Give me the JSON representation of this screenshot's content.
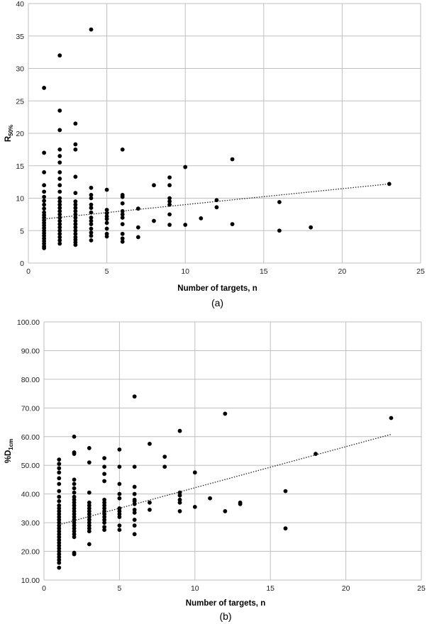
{
  "chart_data": [
    {
      "type": "scatter",
      "panel_label": "(a)",
      "xlabel": "Number of targets, n",
      "ylabel_main": "R",
      "ylabel_sub": "50%",
      "xlim": [
        0,
        25
      ],
      "ylim": [
        0,
        40
      ],
      "xticks": [
        0,
        5,
        10,
        15,
        20,
        25
      ],
      "yticks": [
        0,
        5,
        10,
        15,
        20,
        25,
        30,
        35,
        40
      ],
      "xtick_labels": [
        "0",
        "5",
        "10",
        "15",
        "20",
        "25"
      ],
      "ytick_labels": [
        "0",
        "5",
        "10",
        "15",
        "20",
        "25",
        "30",
        "35",
        "40"
      ],
      "grid": true,
      "trendline": {
        "x": [
          1,
          23
        ],
        "y": [
          6.8,
          12.2
        ]
      },
      "points": [
        [
          1,
          27
        ],
        [
          1,
          17
        ],
        [
          1,
          14
        ],
        [
          1,
          12
        ],
        [
          1,
          11
        ],
        [
          1,
          10.2
        ],
        [
          1,
          9.6
        ],
        [
          1,
          9
        ],
        [
          1,
          8.4
        ],
        [
          1,
          7.8
        ],
        [
          1,
          7.4
        ],
        [
          1,
          7
        ],
        [
          1,
          6.6
        ],
        [
          1,
          6.2
        ],
        [
          1,
          5.8
        ],
        [
          1,
          5.4
        ],
        [
          1,
          5
        ],
        [
          1,
          4.6
        ],
        [
          1,
          4.2
        ],
        [
          1,
          3.8
        ],
        [
          1,
          3.4
        ],
        [
          1,
          3
        ],
        [
          1,
          2.6
        ],
        [
          1,
          2.3
        ],
        [
          2,
          32
        ],
        [
          2,
          23.5
        ],
        [
          2,
          20.5
        ],
        [
          2,
          17.5
        ],
        [
          2,
          16.5
        ],
        [
          2,
          15.5
        ],
        [
          2,
          14
        ],
        [
          2,
          13
        ],
        [
          2,
          12
        ],
        [
          2,
          11
        ],
        [
          2,
          10
        ],
        [
          2,
          9.5
        ],
        [
          2,
          9
        ],
        [
          2,
          8.5
        ],
        [
          2,
          8
        ],
        [
          2,
          7.5
        ],
        [
          2,
          7
        ],
        [
          2,
          6.5
        ],
        [
          2,
          6
        ],
        [
          2,
          5.5
        ],
        [
          2,
          5
        ],
        [
          2,
          4.5
        ],
        [
          2,
          4
        ],
        [
          2,
          3.5
        ],
        [
          2,
          3
        ],
        [
          3,
          21.5
        ],
        [
          3,
          18.3
        ],
        [
          3,
          17.5
        ],
        [
          3,
          13.3
        ],
        [
          3,
          10.8
        ],
        [
          3,
          9.5
        ],
        [
          3,
          9
        ],
        [
          3,
          8.5
        ],
        [
          3,
          8
        ],
        [
          3,
          7.5
        ],
        [
          3,
          7
        ],
        [
          3,
          6.5
        ],
        [
          3,
          6
        ],
        [
          3,
          5.5
        ],
        [
          3,
          5
        ],
        [
          3,
          4.5
        ],
        [
          3,
          4
        ],
        [
          3,
          3.6
        ],
        [
          3,
          3.2
        ],
        [
          3,
          2.8
        ],
        [
          4,
          36
        ],
        [
          4,
          11.6
        ],
        [
          4,
          10.5
        ],
        [
          4,
          10
        ],
        [
          4,
          9
        ],
        [
          4,
          8.5
        ],
        [
          4,
          7.8
        ],
        [
          4,
          7
        ],
        [
          4,
          6.5
        ],
        [
          4,
          6
        ],
        [
          4,
          5.3
        ],
        [
          4,
          4.7
        ],
        [
          4,
          4.2
        ],
        [
          4,
          3.5
        ],
        [
          5,
          11.3
        ],
        [
          5,
          8.2
        ],
        [
          5,
          7.7
        ],
        [
          5,
          7.2
        ],
        [
          5,
          6.8
        ],
        [
          5,
          6.2
        ],
        [
          5,
          5.3
        ],
        [
          5,
          4.5
        ],
        [
          5,
          4.1
        ],
        [
          6,
          17.5
        ],
        [
          6,
          10.5
        ],
        [
          6,
          10.2
        ],
        [
          6,
          9.2
        ],
        [
          6,
          8
        ],
        [
          6,
          7.5
        ],
        [
          6,
          7
        ],
        [
          6,
          6
        ],
        [
          6,
          4.5
        ],
        [
          6,
          3.8
        ],
        [
          6,
          3.3
        ],
        [
          7,
          8.4
        ],
        [
          7,
          5.5
        ],
        [
          7,
          4
        ],
        [
          8,
          12
        ],
        [
          8,
          6.5
        ],
        [
          9,
          13.2
        ],
        [
          9,
          12
        ],
        [
          9,
          10
        ],
        [
          9,
          9.5
        ],
        [
          9,
          9
        ],
        [
          9,
          7.5
        ],
        [
          9,
          5.9
        ],
        [
          10,
          14.8
        ],
        [
          10,
          5.9
        ],
        [
          11,
          6.9
        ],
        [
          12,
          9.7
        ],
        [
          12,
          8.6
        ],
        [
          13,
          16
        ],
        [
          13,
          6
        ],
        [
          16,
          9.4
        ],
        [
          16,
          5
        ],
        [
          18,
          5.5
        ],
        [
          23,
          12.2
        ]
      ]
    },
    {
      "type": "scatter",
      "panel_label": "(b)",
      "xlabel": "Number of targets, n",
      "ylabel_main": "%D",
      "ylabel_sub": "1cm",
      "xlim": [
        0,
        25
      ],
      "ylim": [
        10,
        100
      ],
      "xticks": [
        0,
        5,
        10,
        15,
        20,
        25
      ],
      "yticks": [
        10,
        20,
        30,
        40,
        50,
        60,
        70,
        80,
        90,
        100
      ],
      "xtick_labels": [
        "0",
        "5",
        "10",
        "15",
        "20",
        "25"
      ],
      "ytick_labels": [
        "10.00",
        "20.00",
        "30.00",
        "40.00",
        "50.00",
        "60.00",
        "70.00",
        "80.00",
        "90.00",
        "100.00"
      ],
      "grid": true,
      "trendline": {
        "x": [
          1,
          23
        ],
        "y": [
          29.3,
          60.8
        ]
      },
      "points": [
        [
          1,
          52
        ],
        [
          1,
          50.5
        ],
        [
          1,
          49
        ],
        [
          1,
          47.5
        ],
        [
          1,
          45.5
        ],
        [
          1,
          43.5
        ],
        [
          1,
          41
        ],
        [
          1,
          39
        ],
        [
          1,
          37.5
        ],
        [
          1,
          36
        ],
        [
          1,
          35
        ],
        [
          1,
          34
        ],
        [
          1,
          33
        ],
        [
          1,
          32
        ],
        [
          1,
          31
        ],
        [
          1,
          30
        ],
        [
          1,
          29
        ],
        [
          1,
          28
        ],
        [
          1,
          27
        ],
        [
          1,
          26
        ],
        [
          1,
          25
        ],
        [
          1,
          24
        ],
        [
          1,
          23
        ],
        [
          1,
          22
        ],
        [
          1,
          21
        ],
        [
          1,
          20
        ],
        [
          1,
          19
        ],
        [
          1,
          18
        ],
        [
          1,
          17
        ],
        [
          1,
          16
        ],
        [
          1,
          14.3
        ],
        [
          2,
          60
        ],
        [
          2,
          54.5
        ],
        [
          2,
          54
        ],
        [
          2,
          45
        ],
        [
          2,
          43.5
        ],
        [
          2,
          42
        ],
        [
          2,
          40.5
        ],
        [
          2,
          39
        ],
        [
          2,
          38
        ],
        [
          2,
          37
        ],
        [
          2,
          36
        ],
        [
          2,
          35
        ],
        [
          2,
          34
        ],
        [
          2,
          33
        ],
        [
          2,
          32
        ],
        [
          2,
          31
        ],
        [
          2,
          30
        ],
        [
          2,
          29
        ],
        [
          2,
          28
        ],
        [
          2,
          27
        ],
        [
          2,
          26
        ],
        [
          2,
          25
        ],
        [
          2,
          19.5
        ],
        [
          2,
          19
        ],
        [
          3,
          56
        ],
        [
          3,
          51
        ],
        [
          3,
          40.5
        ],
        [
          3,
          37
        ],
        [
          3,
          36
        ],
        [
          3,
          35
        ],
        [
          3,
          34
        ],
        [
          3,
          33
        ],
        [
          3,
          32
        ],
        [
          3,
          31
        ],
        [
          3,
          30
        ],
        [
          3,
          29
        ],
        [
          3,
          28
        ],
        [
          3,
          27
        ],
        [
          3,
          22.5
        ],
        [
          4,
          52.5
        ],
        [
          4,
          49.5
        ],
        [
          4,
          47
        ],
        [
          4,
          44.5
        ],
        [
          4,
          38
        ],
        [
          4,
          37
        ],
        [
          4,
          36
        ],
        [
          4,
          35
        ],
        [
          4,
          34
        ],
        [
          4,
          33
        ],
        [
          4,
          32
        ],
        [
          4,
          31
        ],
        [
          4,
          30
        ],
        [
          4,
          28.5
        ],
        [
          4,
          27.5
        ],
        [
          5,
          55.5
        ],
        [
          5,
          49.5
        ],
        [
          5,
          43.5
        ],
        [
          5,
          40
        ],
        [
          5,
          38.5
        ],
        [
          5,
          35
        ],
        [
          5,
          34
        ],
        [
          5,
          33
        ],
        [
          5,
          32
        ],
        [
          5,
          29
        ],
        [
          5,
          27.5
        ],
        [
          6,
          74
        ],
        [
          6,
          49.5
        ],
        [
          6,
          42.5
        ],
        [
          6,
          40
        ],
        [
          6,
          38
        ],
        [
          6,
          37.5
        ],
        [
          6,
          36.5
        ],
        [
          6,
          34.5
        ],
        [
          6,
          33.5
        ],
        [
          6,
          31
        ],
        [
          6,
          29
        ],
        [
          6,
          26
        ],
        [
          7,
          57.5
        ],
        [
          7,
          37
        ],
        [
          7,
          34.5
        ],
        [
          8,
          53
        ],
        [
          8,
          49.5
        ],
        [
          9,
          62
        ],
        [
          9,
          40.5
        ],
        [
          9,
          39.5
        ],
        [
          9,
          38
        ],
        [
          9,
          37
        ],
        [
          9,
          34
        ],
        [
          10,
          47.5
        ],
        [
          10,
          35.5
        ],
        [
          11,
          38.5
        ],
        [
          12,
          68
        ],
        [
          12,
          34
        ],
        [
          13,
          37
        ],
        [
          13,
          36.5
        ],
        [
          16,
          41
        ],
        [
          16,
          28
        ],
        [
          18,
          54
        ],
        [
          23,
          66.5
        ]
      ]
    }
  ]
}
